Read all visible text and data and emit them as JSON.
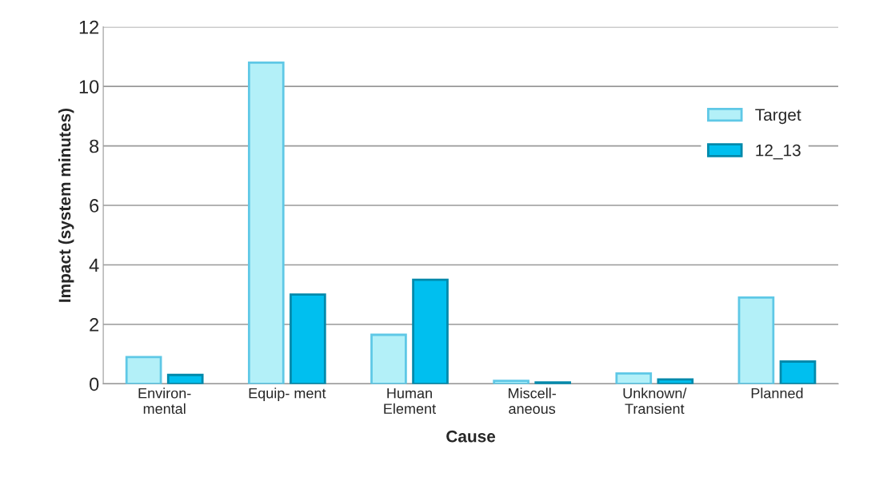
{
  "chart_data": {
    "type": "bar",
    "xlabel": "Cause",
    "ylabel": "Impact (system minutes)",
    "categories": [
      "Environ-\nmental",
      "Equip- ment",
      "Human\nElement",
      "Miscell-\naneous",
      "Unknown/\nTransient",
      "Planned"
    ],
    "series": [
      {
        "name": "Target",
        "color": "#b3f0f8",
        "values": [
          0.9,
          10.8,
          1.65,
          0.1,
          0.35,
          2.9
        ]
      },
      {
        "name": "12_13",
        "color": "#00bfef",
        "values": [
          0.3,
          3.0,
          3.5,
          0.05,
          0.15,
          0.75
        ]
      }
    ],
    "ylim": [
      0,
      12
    ],
    "yticks": [
      0,
      2,
      4,
      6,
      8,
      10,
      12
    ],
    "grid": "y",
    "legend": "right"
  }
}
